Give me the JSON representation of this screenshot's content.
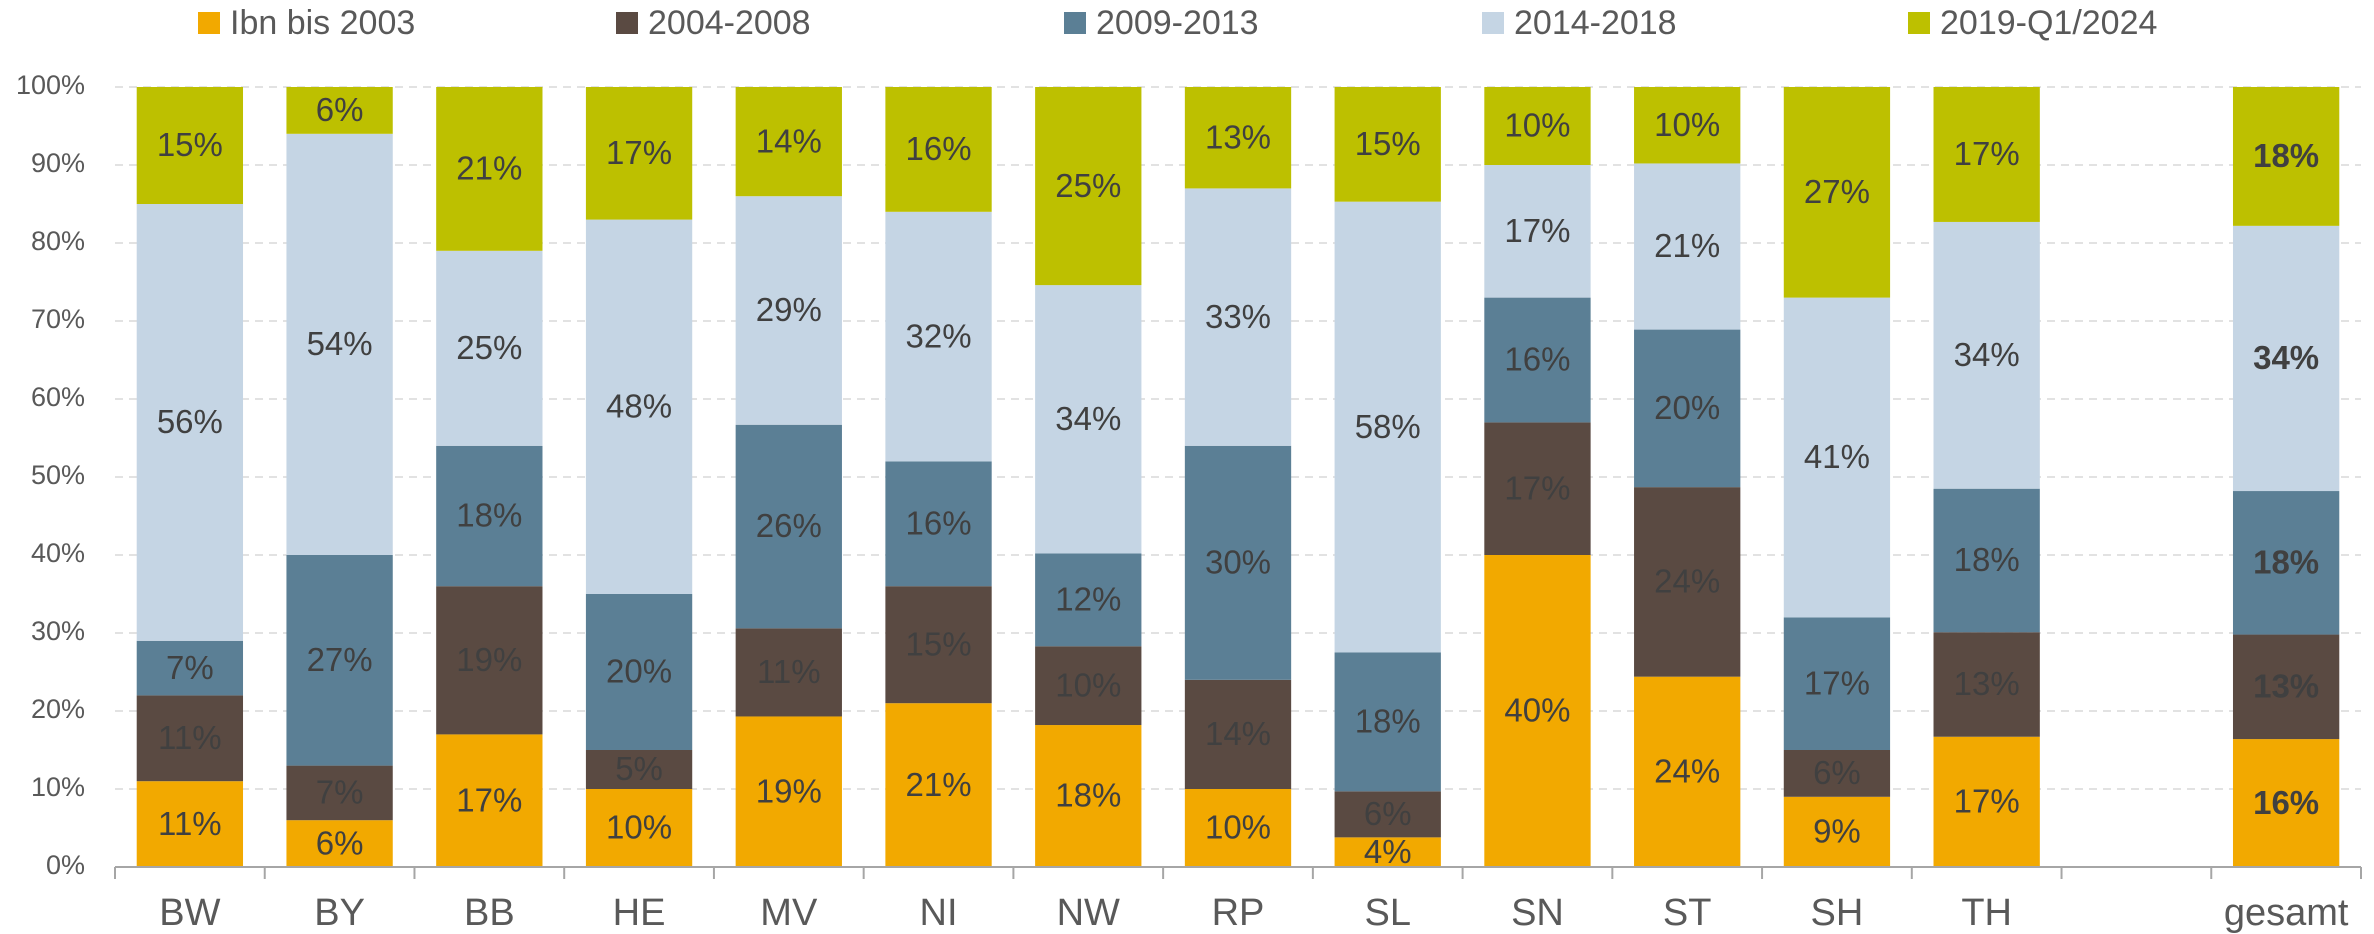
{
  "chart_data": {
    "type": "stacked_bar",
    "categories": [
      "BW",
      "BY",
      "BB",
      "HE",
      "MV",
      "NI",
      "NW",
      "RP",
      "SL",
      "SN",
      "ST",
      "SH",
      "TH",
      null,
      "gesamt"
    ],
    "ylim": [
      0,
      100
    ],
    "yticks": [
      {
        "value": 0,
        "label": "0%"
      },
      {
        "value": 10,
        "label": "10%"
      },
      {
        "value": 20,
        "label": "20%"
      },
      {
        "value": 30,
        "label": "30%"
      },
      {
        "value": 40,
        "label": "40%"
      },
      {
        "value": 50,
        "label": "50%"
      },
      {
        "value": 60,
        "label": "60%"
      },
      {
        "value": 70,
        "label": "70%"
      },
      {
        "value": 80,
        "label": "80%"
      },
      {
        "value": 90,
        "label": "90%"
      },
      {
        "value": 100,
        "label": "100%"
      }
    ],
    "grid": true,
    "legend": "top",
    "series": [
      {
        "name": "Ibn bis 2003",
        "color": "#f2a900",
        "label_color": "#404040",
        "values": [
          11,
          6,
          17,
          10,
          19.3,
          21,
          18.2,
          10,
          3.8,
          40,
          24.4,
          9,
          16.7,
          null,
          16.4
        ],
        "value_labels": [
          "11%",
          "6%",
          "17%",
          "10%",
          "19%",
          "21%",
          "18%",
          "10%",
          "4%",
          "40%",
          "24%",
          "9%",
          "17%",
          null,
          "16%"
        ]
      },
      {
        "name": "2004-2008",
        "color": "#5a4a42",
        "label_color": "#ffffff",
        "values": [
          11,
          7,
          19,
          5,
          11.3,
          15,
          10.1,
          14,
          5.9,
          17,
          24.3,
          6,
          13.4,
          null,
          13.4
        ],
        "value_labels": [
          "11%",
          "7%",
          "19%",
          "5%",
          "11%",
          "15%",
          "10%",
          "14%",
          "6%",
          "17%",
          "24%",
          "6%",
          "13%",
          null,
          "13%"
        ]
      },
      {
        "name": "2009-2013",
        "color": "#5b7f95",
        "label_color": "#ffffff",
        "values": [
          7,
          27,
          18,
          20,
          26.1,
          16,
          11.9,
          30,
          17.8,
          16,
          20.2,
          17,
          18.4,
          null,
          18.4
        ],
        "value_labels": [
          "7%",
          "27%",
          "18%",
          "20%",
          "26%",
          "16%",
          "12%",
          "30%",
          "18%",
          "16%",
          "20%",
          "17%",
          "18%",
          null,
          "18%"
        ]
      },
      {
        "name": "2014-2018",
        "color": "#c5d5e4",
        "label_color": "#404040",
        "values": [
          56,
          54,
          25,
          48,
          29.3,
          32,
          34.4,
          33,
          57.8,
          17,
          21.3,
          41,
          34.2,
          null,
          34.0
        ],
        "value_labels": [
          "56%",
          "54%",
          "25%",
          "48%",
          "29%",
          "32%",
          "34%",
          "33%",
          "58%",
          "17%",
          "21%",
          "41%",
          "34%",
          null,
          "34%"
        ]
      },
      {
        "name": "2019-Q1/2024",
        "color": "#bdc000",
        "label_color": "#404040",
        "values": [
          15,
          6,
          21,
          17,
          14.0,
          16,
          25.4,
          13,
          14.7,
          10,
          9.8,
          27,
          17.3,
          null,
          17.8
        ],
        "value_labels": [
          "15%",
          "6%",
          "21%",
          "17%",
          "14%",
          "16%",
          "25%",
          "13%",
          "15%",
          "10%",
          "10%",
          "27%",
          "17%",
          null,
          "18%"
        ]
      }
    ]
  }
}
